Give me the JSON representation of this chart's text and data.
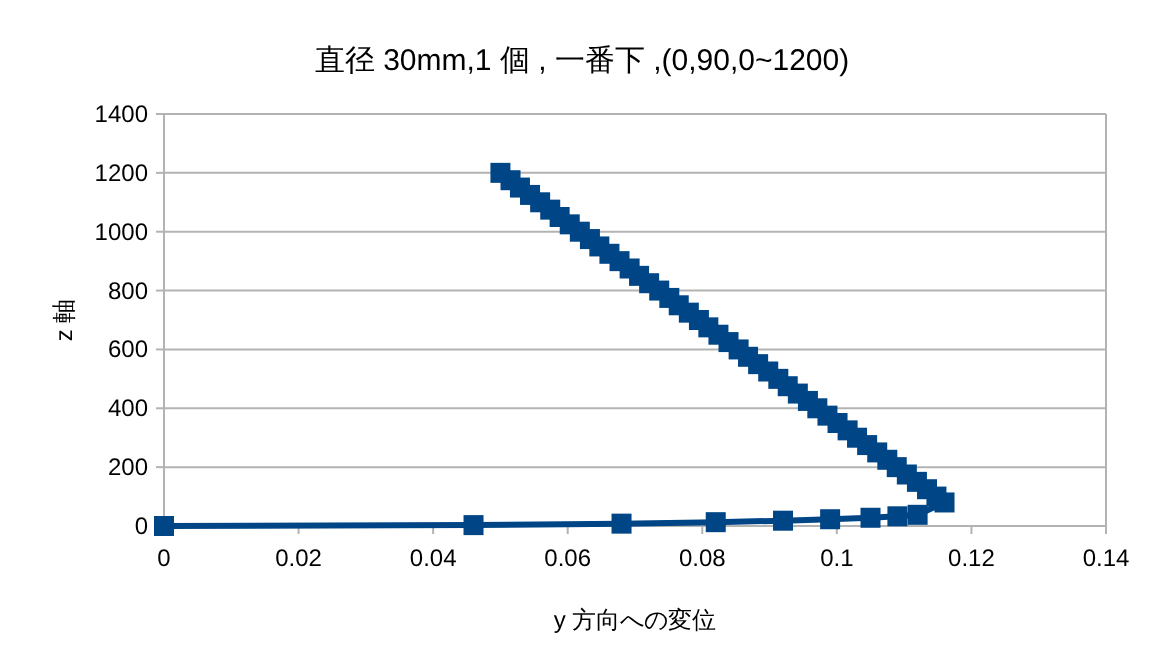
{
  "chart_data": {
    "type": "line",
    "title": "直径 30mm,1 個 , 一番下 ,(0,90,0~1200)",
    "xlabel": "y 方向への変位",
    "ylabel": "z 軸",
    "xlim": [
      0,
      0.14
    ],
    "xticks": [
      0,
      0.02,
      0.04,
      0.06,
      0.08,
      0.1,
      0.12,
      0.14
    ],
    "ylim": [
      0,
      1400
    ],
    "yticks": [
      0,
      200,
      400,
      600,
      800,
      1000,
      1200,
      1400
    ],
    "grid": "y",
    "marker": "square",
    "line_style": "solid",
    "series": [
      {
        "color": "#004586",
        "x": [
          0,
          0.046,
          0.068,
          0.082,
          0.092,
          0.099,
          0.105,
          0.109,
          0.112,
          0.116,
          0.1148,
          0.1134,
          0.1119,
          0.1104,
          0.1089,
          0.1075,
          0.106,
          0.1045,
          0.103,
          0.1016,
          0.1001,
          0.0986,
          0.0971,
          0.0957,
          0.0942,
          0.0927,
          0.0913,
          0.0898,
          0.0883,
          0.0868,
          0.0854,
          0.0839,
          0.0824,
          0.0809,
          0.0795,
          0.078,
          0.0765,
          0.0751,
          0.0736,
          0.0721,
          0.0706,
          0.0692,
          0.0677,
          0.0662,
          0.0647,
          0.0633,
          0.0618,
          0.0603,
          0.0588,
          0.0574,
          0.0559,
          0.0544,
          0.0529,
          0.0515,
          0.05
        ],
        "values": [
          0,
          3,
          8,
          13,
          18,
          23,
          28,
          33,
          38,
          80,
          100,
          125,
          150,
          175,
          200,
          225,
          250,
          275,
          300,
          325,
          350,
          375,
          400,
          425,
          450,
          475,
          500,
          525,
          550,
          575,
          600,
          625,
          650,
          675,
          700,
          725,
          750,
          775,
          800,
          825,
          850,
          875,
          900,
          925,
          950,
          975,
          1000,
          1025,
          1050,
          1075,
          1100,
          1125,
          1150,
          1175,
          1200
        ]
      }
    ]
  }
}
